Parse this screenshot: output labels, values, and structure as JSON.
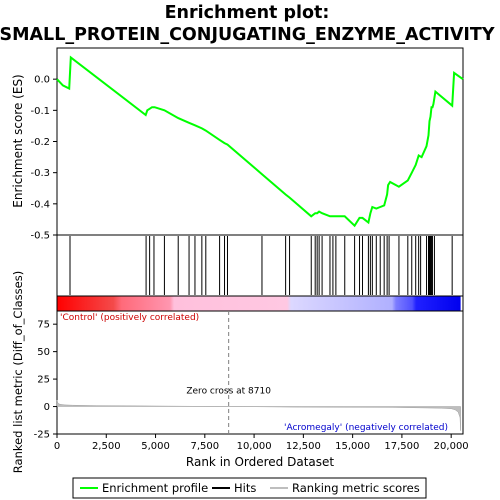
{
  "chart_data": [
    {
      "type": "line",
      "title_line1": "Enrichment plot:",
      "title_line2": "SMALL_PROTEIN_CONJUGATING_ENZYME_ACTIVITY",
      "ylabel": "Enrichment score (ES)",
      "xlim": [
        0,
        20600
      ],
      "ylim": [
        -0.5,
        0.1
      ],
      "yticks": [
        "0.0",
        "-0.1",
        "-0.2",
        "-0.3",
        "-0.4",
        "-0.5"
      ],
      "ytick_values": [
        0.0,
        -0.1,
        -0.2,
        -0.3,
        -0.4,
        -0.5
      ],
      "series": [
        {
          "color": "#00ff00",
          "x": [
            0,
            300,
            620,
            700,
            4500,
            4580,
            4700,
            4820,
            4950,
            5450,
            6150,
            6700,
            7000,
            7350,
            7550,
            8250,
            8500,
            8650,
            10400,
            11600,
            11800,
            12900,
            13100,
            13200,
            13300,
            13450,
            13850,
            14000,
            14150,
            14250,
            14600,
            15100,
            15350,
            15500,
            15800,
            15900,
            16000,
            16200,
            16400,
            16600,
            16750,
            16800,
            16900,
            17350,
            17800,
            18000,
            18200,
            18350,
            18500,
            18750,
            18850,
            18900,
            18950,
            19000,
            19050,
            19100,
            19200,
            20050,
            20150,
            20600
          ],
          "y": [
            0.0,
            -0.02,
            -0.03,
            0.07,
            -0.115,
            -0.1,
            -0.095,
            -0.09,
            -0.09,
            -0.1,
            -0.125,
            -0.14,
            -0.148,
            -0.158,
            -0.165,
            -0.195,
            -0.205,
            -0.21,
            -0.305,
            -0.37,
            -0.38,
            -0.44,
            -0.43,
            -0.43,
            -0.425,
            -0.43,
            -0.44,
            -0.44,
            -0.44,
            -0.44,
            -0.44,
            -0.47,
            -0.445,
            -0.445,
            -0.46,
            -0.43,
            -0.41,
            -0.415,
            -0.41,
            -0.405,
            -0.37,
            -0.34,
            -0.33,
            -0.345,
            -0.325,
            -0.3,
            -0.275,
            -0.245,
            -0.25,
            -0.215,
            -0.18,
            -0.135,
            -0.12,
            -0.09,
            -0.09,
            -0.08,
            -0.04,
            -0.085,
            0.02,
            0.0
          ]
        }
      ]
    },
    {
      "type": "scatter",
      "hits": [
        660,
        4520,
        4700,
        4920,
        5450,
        6150,
        6700,
        7000,
        7350,
        7550,
        8250,
        8500,
        8650,
        10400,
        11600,
        11800,
        12900,
        13100,
        13200,
        13300,
        13450,
        13850,
        14000,
        14150,
        14600,
        15100,
        15350,
        15500,
        15800,
        15900,
        16000,
        16200,
        16400,
        16600,
        16750,
        16850,
        17350,
        17800,
        18000,
        18200,
        18350,
        18450,
        18750,
        18850,
        18900,
        18950,
        19000,
        19050,
        19150,
        20050
      ]
    },
    {
      "type": "area",
      "ylabel": "Ranked list metric (Diff_of_Classes)",
      "xlabel": "Rank in Ordered Dataset",
      "xlim": [
        0,
        20600
      ],
      "ylim": [
        -25,
        87
      ],
      "xticks": [
        "0",
        "2,500",
        "5,000",
        "7,500",
        "10,000",
        "12,500",
        "15,000",
        "17,500",
        "20,000"
      ],
      "xtick_values": [
        0,
        2500,
        5000,
        7500,
        10000,
        12500,
        15000,
        17500,
        20000
      ],
      "yticks": [
        "75",
        "50",
        "25",
        "0",
        "-25"
      ],
      "ytick_values": [
        75,
        50,
        25,
        0,
        -25
      ],
      "zero_cross_label": "Zero cross at 8710",
      "zero_cross_x": 8710,
      "positive_label": "'Control' (positively correlated)",
      "negative_label": "'Acromegaly' (negatively correlated)",
      "x": [
        0,
        50,
        150,
        400,
        800,
        2000,
        5000,
        8710,
        12000,
        17000,
        19500,
        20000,
        20200,
        20350,
        20450,
        20480
      ],
      "values": [
        6,
        3,
        2,
        1.5,
        1.2,
        0.9,
        0.5,
        0,
        -0.5,
        -0.8,
        -1.5,
        -2,
        -3,
        -5,
        -10,
        -22
      ]
    }
  ],
  "legend": {
    "enrichment_profile": "Enrichment profile",
    "hits": "Hits",
    "ranking_metric": "Ranking metric scores"
  },
  "colors": {
    "profile": "#00ff00",
    "metric_fill": "#bebebe",
    "positive_label": "#cc0000",
    "negative_label": "#0000cc",
    "bar_red": "#ff0000",
    "bar_pink": "#ffb6d6",
    "bar_lavender": "#c8c8ff",
    "bar_blue": "#0000ff"
  }
}
